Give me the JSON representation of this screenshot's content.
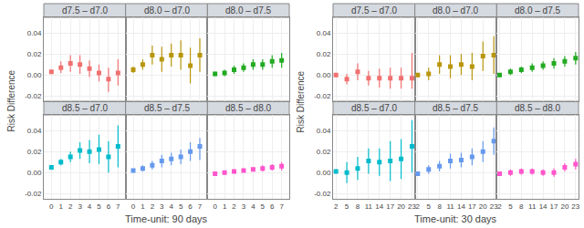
{
  "chart_data": [
    {
      "type": "scatter",
      "xlabel": "Time-unit: 90 days",
      "ylabel": "Risk Difference",
      "xlim": [
        -0.8,
        7.8
      ],
      "xticks": [
        0,
        1,
        2,
        3,
        4,
        5,
        6,
        7
      ],
      "ylim": [
        -0.025,
        0.055
      ],
      "yticks": [
        -0.02,
        {
          "value": 0,
          "label": "0.00"
        },
        0.02,
        0.04
      ],
      "grid": true,
      "marker": "square",
      "series": [
        {
          "name": "d7.5 – d7.0",
          "color": "#f07070",
          "tick_labels": "y",
          "x": [
            0,
            1,
            2,
            3,
            4,
            5,
            6,
            7
          ],
          "values": [
            0.003,
            0.007,
            0.011,
            0.01,
            0.006,
            0.002,
            -0.004,
            0.002
          ],
          "lo": [
            0.001,
            0.002,
            0.003,
            0.001,
            -0.002,
            -0.006,
            -0.016,
            -0.01
          ],
          "hi": [
            0.005,
            0.013,
            0.019,
            0.019,
            0.014,
            0.01,
            0.007,
            0.015
          ]
        },
        {
          "name": "d8.0 – d7.0",
          "color": "#b8960c",
          "tick_labels": false,
          "x": [
            0,
            1,
            2,
            3,
            4,
            5,
            6,
            7
          ],
          "values": [
            0.005,
            0.01,
            0.019,
            0.015,
            0.019,
            0.019,
            0.009,
            0.019
          ],
          "lo": [
            0.002,
            0.005,
            0.01,
            0.003,
            0.008,
            0.005,
            -0.008,
            0.003
          ],
          "hi": [
            0.008,
            0.015,
            0.028,
            0.027,
            0.03,
            0.033,
            0.026,
            0.035
          ]
        },
        {
          "name": "d8.0 – d7.5",
          "color": "#22aa22",
          "tick_labels": false,
          "x": [
            0,
            1,
            2,
            3,
            4,
            5,
            6,
            7
          ],
          "values": [
            0.001,
            0.002,
            0.005,
            0.007,
            0.01,
            0.01,
            0.013,
            0.014
          ],
          "lo": [
            -0.001,
            -0.001,
            0.001,
            0.003,
            0.005,
            0.005,
            0.007,
            0.007
          ],
          "hi": [
            0.003,
            0.005,
            0.009,
            0.011,
            0.015,
            0.015,
            0.019,
            0.021
          ]
        },
        {
          "name": "d8.5 – d7.0",
          "color": "#00bbcc",
          "tick_labels": true,
          "x": [
            0,
            1,
            2,
            3,
            4,
            5,
            6,
            7
          ],
          "values": [
            0.005,
            0.01,
            0.015,
            0.021,
            0.02,
            0.022,
            0.015,
            0.025
          ],
          "lo": [
            0.003,
            0.007,
            0.01,
            0.013,
            0.009,
            0.008,
            0.0,
            0.005
          ],
          "hi": [
            0.007,
            0.013,
            0.02,
            0.029,
            0.031,
            0.036,
            0.03,
            0.045
          ]
        },
        {
          "name": "d8.5 – d7.5",
          "color": "#6699ee",
          "tick_labels": "x",
          "x": [
            0,
            1,
            2,
            3,
            4,
            5,
            6,
            7
          ],
          "values": [
            0.002,
            0.004,
            0.007,
            0.011,
            0.013,
            0.015,
            0.02,
            0.025
          ],
          "lo": [
            0.0,
            0.001,
            0.003,
            0.005,
            0.007,
            0.008,
            0.011,
            0.012
          ],
          "hi": [
            0.004,
            0.007,
            0.011,
            0.017,
            0.019,
            0.022,
            0.029,
            0.033
          ]
        },
        {
          "name": "d8.5 – d8.0",
          "color": "#ff55cc",
          "tick_labels": "x",
          "x": [
            0,
            1,
            2,
            3,
            4,
            5,
            6,
            7
          ],
          "values": [
            -0.001,
            0.0,
            0.001,
            0.002,
            0.003,
            0.004,
            0.005,
            0.006
          ],
          "lo": [
            -0.002,
            -0.002,
            -0.001,
            0.0,
            0.001,
            0.001,
            0.002,
            0.002
          ],
          "hi": [
            0.0,
            0.002,
            0.003,
            0.004,
            0.005,
            0.007,
            0.008,
            0.01
          ]
        }
      ]
    },
    {
      "type": "scatter",
      "xlabel": "Time-unit: 30 days",
      "ylabel": "Risk Difference",
      "xlim": [
        1.2,
        23.8
      ],
      "xticks": [
        2,
        5,
        8,
        11,
        14,
        17,
        20,
        23
      ],
      "ylim": [
        -0.025,
        0.055
      ],
      "yticks": [
        -0.02,
        {
          "value": 0,
          "label": "0.00"
        },
        0.02,
        0.04
      ],
      "grid": true,
      "marker": "square",
      "series": [
        {
          "name": "d7.5 – d7.0",
          "color": "#f07070",
          "tick_labels": "y",
          "x": [
            2,
            5,
            8,
            11,
            14,
            17,
            20,
            23
          ],
          "values": [
            0.0,
            -0.004,
            0.003,
            -0.003,
            -0.003,
            -0.003,
            -0.003,
            -0.003
          ],
          "lo": [
            -0.002,
            -0.009,
            -0.005,
            -0.01,
            -0.012,
            -0.013,
            -0.013,
            -0.013
          ],
          "hi": [
            0.002,
            0.001,
            0.011,
            0.004,
            0.006,
            0.007,
            0.007,
            0.021
          ]
        },
        {
          "name": "d8.0 – d7.0",
          "color": "#b8960c",
          "tick_labels": false,
          "x": [
            2,
            5,
            8,
            11,
            14,
            17,
            20,
            23
          ],
          "values": [
            0.0,
            0.001,
            0.01,
            0.008,
            0.01,
            0.008,
            0.018,
            0.019
          ],
          "lo": [
            -0.002,
            -0.005,
            0.001,
            -0.003,
            0.0,
            -0.005,
            0.004,
            0.001
          ],
          "hi": [
            0.002,
            0.007,
            0.019,
            0.019,
            0.02,
            0.021,
            0.032,
            0.037
          ]
        },
        {
          "name": "d8.0 – d7.5",
          "color": "#22aa22",
          "tick_labels": false,
          "x": [
            2,
            5,
            8,
            11,
            14,
            17,
            20,
            23
          ],
          "values": [
            0.0,
            0.003,
            0.005,
            0.007,
            0.009,
            0.011,
            0.013,
            0.016
          ],
          "lo": [
            -0.001,
            0.0,
            0.002,
            0.003,
            0.005,
            0.006,
            0.008,
            0.01
          ],
          "hi": [
            0.001,
            0.006,
            0.008,
            0.011,
            0.013,
            0.016,
            0.018,
            0.022
          ]
        },
        {
          "name": "d8.5 – d7.0",
          "color": "#00bbcc",
          "tick_labels": true,
          "x": [
            2,
            5,
            8,
            11,
            14,
            17,
            20,
            23
          ],
          "values": [
            0.001,
            0.0,
            0.004,
            0.011,
            0.01,
            0.011,
            0.013,
            0.025
          ],
          "lo": [
            -0.001,
            -0.01,
            -0.007,
            -0.001,
            -0.003,
            -0.008,
            -0.006,
            0.0
          ],
          "hi": [
            0.003,
            0.01,
            0.015,
            0.023,
            0.023,
            0.03,
            0.032,
            0.05
          ]
        },
        {
          "name": "d8.5 – d7.5",
          "color": "#6699ee",
          "tick_labels": "x",
          "x": [
            2,
            5,
            8,
            11,
            14,
            17,
            20,
            23
          ],
          "values": [
            -0.001,
            0.003,
            0.006,
            0.011,
            0.012,
            0.015,
            0.02,
            0.03
          ],
          "lo": [
            -0.003,
            -0.001,
            0.001,
            0.004,
            0.005,
            0.007,
            0.01,
            0.017
          ],
          "hi": [
            0.001,
            0.007,
            0.011,
            0.018,
            0.019,
            0.023,
            0.03,
            0.043
          ]
        },
        {
          "name": "d8.5 – d8.0",
          "color": "#ff55cc",
          "tick_labels": "x",
          "x": [
            2,
            5,
            8,
            11,
            14,
            17,
            20,
            23
          ],
          "values": [
            -0.001,
            0.0,
            0.001,
            0.001,
            0.0,
            0.0,
            0.005,
            0.008
          ],
          "lo": [
            -0.003,
            -0.003,
            -0.002,
            -0.002,
            -0.003,
            -0.004,
            0.001,
            0.003
          ],
          "hi": [
            0.001,
            0.003,
            0.004,
            0.004,
            0.003,
            0.004,
            0.009,
            0.013
          ]
        }
      ]
    }
  ]
}
